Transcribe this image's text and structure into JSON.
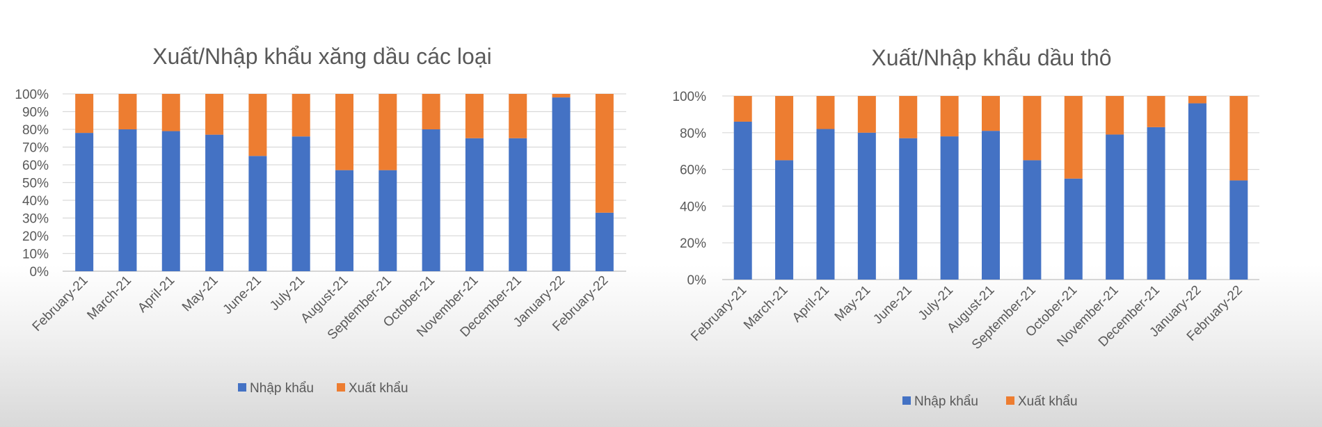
{
  "colors": {
    "import": "#4472C4",
    "export": "#ED7D31",
    "text": "#595959",
    "grid": "#D9D9D9"
  },
  "chart_data": [
    {
      "type": "bar",
      "stacked": "percent",
      "title": "Xuất/Nhập khẩu xăng dầu các loại",
      "categories": [
        "February-21",
        "March-21",
        "April-21",
        "May-21",
        "June-21",
        "July-21",
        "August-21",
        "September-21",
        "October-21",
        "November-21",
        "December-21",
        "January-22",
        "February-22"
      ],
      "series": [
        {
          "name": "Nhập khẩu",
          "values": [
            78,
            80,
            79,
            77,
            65,
            76,
            57,
            57,
            80,
            75,
            75,
            98,
            33
          ]
        },
        {
          "name": "Xuất khẩu",
          "values": [
            22,
            20,
            21,
            23,
            35,
            24,
            43,
            43,
            20,
            25,
            25,
            2,
            67
          ]
        }
      ],
      "ylim": [
        0,
        100
      ],
      "yticks": [
        "0%",
        "10%",
        "20%",
        "30%",
        "40%",
        "50%",
        "60%",
        "70%",
        "80%",
        "90%",
        "100%"
      ],
      "grid": true,
      "legend": "bottom"
    },
    {
      "type": "bar",
      "stacked": "percent",
      "title": "Xuất/Nhập khẩu dầu thô",
      "categories": [
        "February-21",
        "March-21",
        "April-21",
        "May-21",
        "June-21",
        "July-21",
        "August-21",
        "September-21",
        "October-21",
        "November-21",
        "December-21",
        "January-22",
        "February-22"
      ],
      "series": [
        {
          "name": "Nhập khẩu",
          "values": [
            86,
            65,
            82,
            80,
            77,
            78,
            81,
            65,
            55,
            79,
            83,
            96,
            54
          ]
        },
        {
          "name": "Xuất khẩu",
          "values": [
            14,
            35,
            18,
            20,
            23,
            22,
            19,
            35,
            45,
            21,
            17,
            4,
            46
          ]
        }
      ],
      "ylim": [
        0,
        100
      ],
      "yticks": [
        "0%",
        "20%",
        "40%",
        "60%",
        "80%",
        "100%"
      ],
      "grid": true,
      "legend": "bottom"
    }
  ]
}
